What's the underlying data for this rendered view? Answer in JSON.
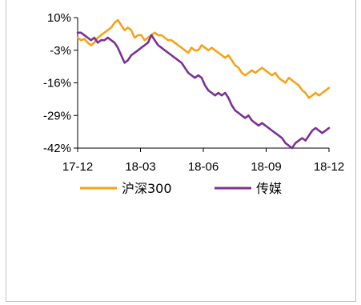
{
  "chart_data": {
    "type": "line",
    "title": "",
    "xlabel": "",
    "ylabel": "",
    "x_ticks": [
      "17-12",
      "18-03",
      "18-06",
      "18-09",
      "18-12"
    ],
    "y_ticks": [
      "10%",
      "-3%",
      "-16%",
      "-29%",
      "-42%"
    ],
    "ylim": [
      -42,
      10
    ],
    "grid": false,
    "legend_position": "bottom",
    "series": [
      {
        "name": "沪深300",
        "color": "#F5A31A",
        "values": [
          2,
          1,
          1.5,
          0,
          -1,
          0,
          2,
          3,
          4,
          5,
          6,
          8,
          9,
          7,
          5,
          6,
          5,
          2,
          3,
          3,
          1,
          2,
          3,
          4,
          3,
          3,
          2,
          1,
          1,
          0,
          -1,
          -2,
          -3,
          -4,
          -2,
          -3,
          -3,
          -1,
          -2,
          -3,
          -2,
          -3,
          -4,
          -5,
          -6,
          -5,
          -7,
          -9,
          -10,
          -12,
          -13,
          -12,
          -11,
          -12,
          -11,
          -10,
          -11,
          -12,
          -13,
          -12,
          -14,
          -15,
          -16,
          -14,
          -15,
          -16,
          -17,
          -19,
          -20,
          -22,
          -21,
          -20,
          -21,
          -20,
          -19,
          -18
        ]
      },
      {
        "name": "传媒",
        "color": "#7B3294",
        "values": [
          4,
          4,
          3,
          2,
          1,
          2,
          0,
          1,
          1,
          2,
          1,
          0,
          -2,
          -5,
          -8,
          -7,
          -5,
          -4,
          -3,
          -2,
          -1,
          0,
          3,
          1,
          -1,
          -2,
          -3,
          -4,
          -5,
          -6,
          -7,
          -8,
          -10,
          -12,
          -13,
          -14,
          -13,
          -14,
          -17,
          -19,
          -20,
          -21,
          -20,
          -21,
          -20,
          -22,
          -25,
          -27,
          -28,
          -29,
          -30,
          -29,
          -31,
          -32,
          -33,
          -32,
          -33,
          -34,
          -35,
          -36,
          -37,
          -38,
          -40,
          -41,
          -42,
          -40,
          -39,
          -38,
          -39,
          -37,
          -35,
          -34,
          -35,
          -36,
          -35,
          -34
        ]
      }
    ]
  }
}
